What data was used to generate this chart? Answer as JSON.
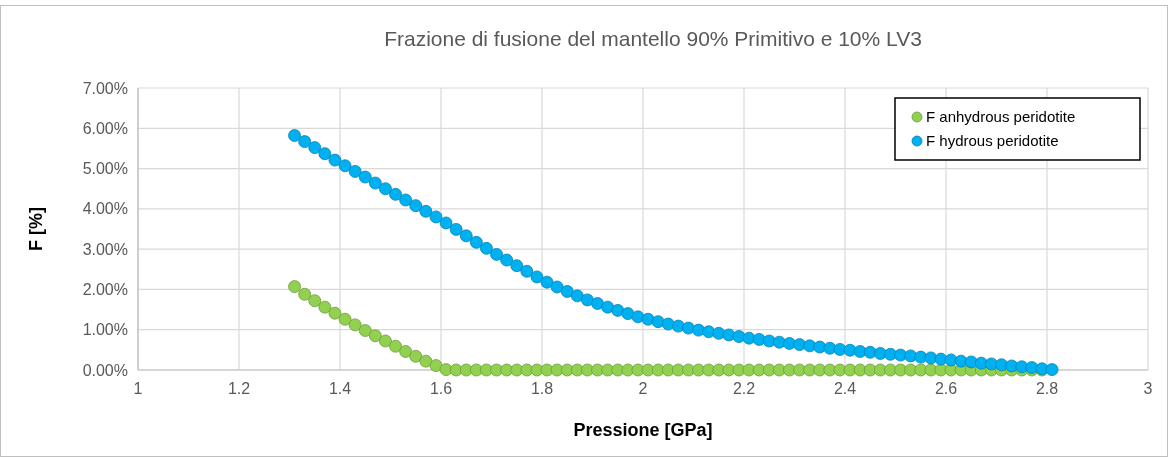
{
  "chart_data": {
    "type": "scatter",
    "title": "Frazione di fusione del mantello 90% Primitivo e 10% LV3",
    "xlabel": "Pressione [GPa]",
    "ylabel": "F [%]",
    "xlim": [
      1,
      3
    ],
    "xticks": [
      1,
      1.2,
      1.4,
      1.6,
      1.8,
      2,
      2.2,
      2.4,
      2.6,
      2.8,
      3
    ],
    "ylim": [
      0,
      7
    ],
    "yticks": [
      {
        "value": 0,
        "label": "0.00%"
      },
      {
        "value": 1,
        "label": "1.00%"
      },
      {
        "value": 2,
        "label": "2.00%"
      },
      {
        "value": 3,
        "label": "3.00%"
      },
      {
        "value": 4,
        "label": "4.00%"
      },
      {
        "value": 5,
        "label": "5.00%"
      },
      {
        "value": 6,
        "label": "6.00%"
      },
      {
        "value": 7,
        "label": "7.00%"
      }
    ],
    "grid": true,
    "legend": "top right",
    "marker": "circle",
    "series": [
      {
        "name": "F anhydrous peridotite",
        "color": "#92d050",
        "x": [
          1.31,
          1.33,
          1.35,
          1.37,
          1.39,
          1.41,
          1.43,
          1.45,
          1.47,
          1.49,
          1.51,
          1.53,
          1.55,
          1.57,
          1.59,
          1.61,
          1.63,
          1.65,
          1.67,
          1.69,
          1.71,
          1.73,
          1.75,
          1.77,
          1.79,
          1.81,
          1.83,
          1.85,
          1.87,
          1.89,
          1.91,
          1.93,
          1.95,
          1.97,
          1.99,
          2.01,
          2.03,
          2.05,
          2.07,
          2.09,
          2.11,
          2.13,
          2.15,
          2.17,
          2.19,
          2.21,
          2.23,
          2.25,
          2.27,
          2.29,
          2.31,
          2.33,
          2.35,
          2.37,
          2.39,
          2.41,
          2.43,
          2.45,
          2.47,
          2.49,
          2.51,
          2.53,
          2.55,
          2.57,
          2.59,
          2.61,
          2.63,
          2.65,
          2.67,
          2.69,
          2.71,
          2.73,
          2.75,
          2.77,
          2.79
        ],
        "values": [
          2.07,
          1.88,
          1.72,
          1.56,
          1.41,
          1.26,
          1.12,
          0.98,
          0.85,
          0.72,
          0.59,
          0.46,
          0.34,
          0.22,
          0.11,
          0.01,
          0,
          0,
          0,
          0,
          0,
          0,
          0,
          0,
          0,
          0,
          0,
          0,
          0,
          0,
          0,
          0,
          0,
          0,
          0,
          0,
          0,
          0,
          0,
          0,
          0,
          0,
          0,
          0,
          0,
          0,
          0,
          0,
          0,
          0,
          0,
          0,
          0,
          0,
          0,
          0,
          0,
          0,
          0,
          0,
          0,
          0,
          0,
          0,
          0,
          0,
          0,
          0,
          0,
          0,
          0,
          0,
          0,
          0,
          0
        ]
      },
      {
        "name": "F hydrous peridotite",
        "color": "#00b0f0",
        "x": [
          1.31,
          1.33,
          1.35,
          1.37,
          1.39,
          1.41,
          1.43,
          1.45,
          1.47,
          1.49,
          1.51,
          1.53,
          1.55,
          1.57,
          1.59,
          1.61,
          1.63,
          1.65,
          1.67,
          1.69,
          1.71,
          1.73,
          1.75,
          1.77,
          1.79,
          1.81,
          1.83,
          1.85,
          1.87,
          1.89,
          1.91,
          1.93,
          1.95,
          1.97,
          1.99,
          2.01,
          2.03,
          2.05,
          2.07,
          2.09,
          2.11,
          2.13,
          2.15,
          2.17,
          2.19,
          2.21,
          2.23,
          2.25,
          2.27,
          2.29,
          2.31,
          2.33,
          2.35,
          2.37,
          2.39,
          2.41,
          2.43,
          2.45,
          2.47,
          2.49,
          2.51,
          2.53,
          2.55,
          2.57,
          2.59,
          2.61,
          2.63,
          2.65,
          2.67,
          2.69,
          2.71,
          2.73,
          2.75,
          2.77,
          2.79,
          2.81
        ],
        "values": [
          5.82,
          5.67,
          5.52,
          5.37,
          5.21,
          5.07,
          4.93,
          4.79,
          4.64,
          4.5,
          4.36,
          4.22,
          4.08,
          3.94,
          3.8,
          3.65,
          3.49,
          3.33,
          3.17,
          3.02,
          2.87,
          2.73,
          2.59,
          2.45,
          2.31,
          2.18,
          2.06,
          1.95,
          1.84,
          1.74,
          1.65,
          1.56,
          1.48,
          1.4,
          1.32,
          1.26,
          1.2,
          1.14,
          1.09,
          1.04,
          0.99,
          0.95,
          0.91,
          0.87,
          0.83,
          0.79,
          0.76,
          0.72,
          0.69,
          0.66,
          0.63,
          0.6,
          0.57,
          0.54,
          0.51,
          0.49,
          0.46,
          0.44,
          0.41,
          0.39,
          0.37,
          0.35,
          0.32,
          0.3,
          0.27,
          0.25,
          0.22,
          0.2,
          0.17,
          0.15,
          0.13,
          0.1,
          0.08,
          0.06,
          0.03,
          0.01
        ]
      }
    ]
  }
}
